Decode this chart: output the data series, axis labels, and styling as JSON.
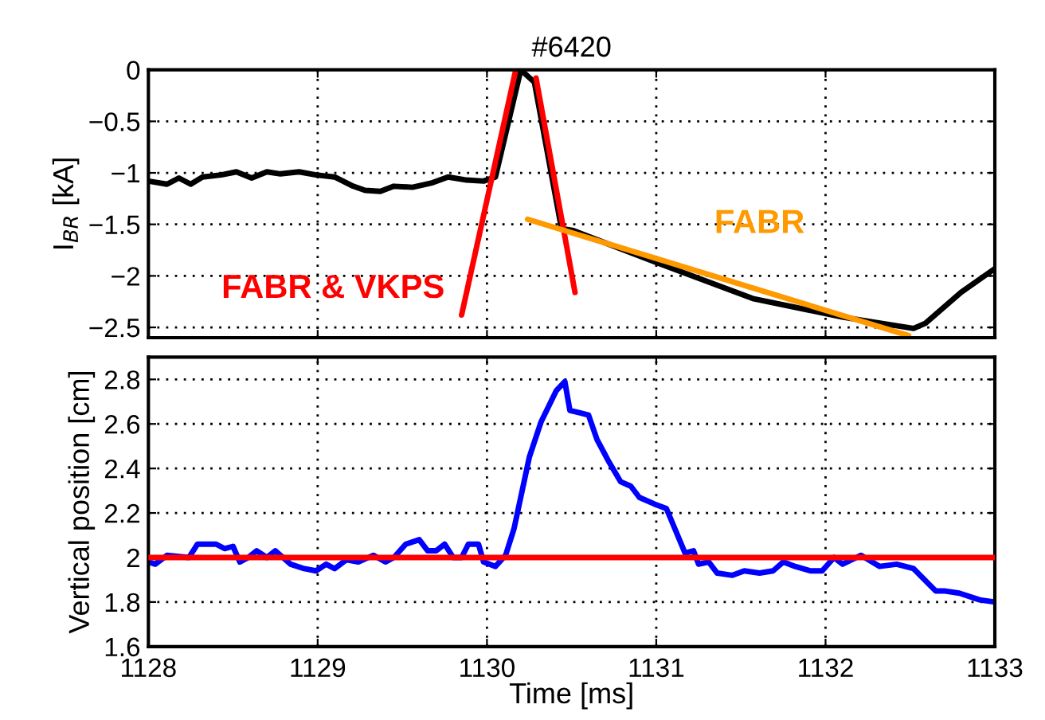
{
  "chart_data": [
    {
      "type": "line",
      "title": "#6420",
      "ylabel": "I$_{BR}$ [kA]",
      "xlim": [
        1128,
        1133
      ],
      "xticks": [
        1128,
        1129,
        1130,
        1131,
        1132,
        1133
      ],
      "ylim": [
        -2.6,
        0
      ],
      "yticks": [
        {
          "value": -2.5,
          "label": "−2.5"
        },
        {
          "value": -2,
          "label": "−2"
        },
        {
          "value": -1.5,
          "label": "−1.5"
        },
        {
          "value": -1,
          "label": "−1"
        },
        {
          "value": -0.5,
          "label": "−0.5"
        },
        0
      ],
      "tick_labels": "y",
      "grid": true,
      "line_style": "solid",
      "marker": "none",
      "series": [
        {
          "color": "#000000",
          "x": [
            1128,
            1128.11,
            1128.18,
            1128.25,
            1128.32,
            1128.43,
            1128.52,
            1128.61,
            1128.7,
            1128.78,
            1128.89,
            1128.99,
            1129.1,
            1129.21,
            1129.28,
            1129.37,
            1129.45,
            1129.56,
            1129.67,
            1129.77,
            1129.88,
            1129.98,
            1130.05,
            1130.2,
            1130.28,
            1130.44,
            1130.51,
            1131,
            1131.57,
            1132.1,
            1132.52,
            1132.59,
            1132.8,
            1133
          ],
          "values": [
            -1.08,
            -1.11,
            -1.05,
            -1.11,
            -1.04,
            -1.02,
            -0.99,
            -1.05,
            -0.99,
            -1.01,
            -0.99,
            -1.02,
            -1.04,
            -1.13,
            -1.17,
            -1.18,
            -1.13,
            -1.14,
            -1.1,
            -1.04,
            -1.07,
            -1.08,
            -1.04,
            0,
            -0.12,
            -1.54,
            -1.56,
            -1.87,
            -2.22,
            -2.4,
            -2.51,
            -2.46,
            -2.16,
            -1.93
          ]
        },
        {
          "name": "FABR & VKPS",
          "color": "#ff0000",
          "x": [
            1129.85,
            1130.17,
            1130.2,
            1130.29,
            1130.52
          ],
          "values": [
            -2.38,
            0,
            null,
            -0.08,
            -2.16
          ]
        },
        {
          "name": "FABR",
          "color": "#ff9900",
          "x": [
            1130.24,
            1132.49
          ],
          "values": [
            -1.45,
            -2.58
          ]
        }
      ]
    },
    {
      "type": "line",
      "xlabel": "Time [ms]",
      "ylabel": "Vertical position [cm]",
      "xlim": [
        1128,
        1133
      ],
      "xticks": [
        1128,
        1129,
        1130,
        1131,
        1132,
        1133
      ],
      "ylim": [
        1.6,
        2.9
      ],
      "yticks": [
        1.6,
        1.8,
        2,
        2.2,
        2.4,
        2.6,
        2.8
      ],
      "grid": true,
      "line_style": "solid",
      "marker": "none",
      "ref_lines": [
        {
          "axis": "y",
          "value": 2,
          "color": "#ff0000"
        }
      ],
      "series": [
        {
          "color": "#0000ff",
          "x": [
            1128,
            1128.04,
            1128.11,
            1128.24,
            1128.29,
            1128.4,
            1128.45,
            1128.5,
            1128.54,
            1128.59,
            1128.64,
            1128.7,
            1128.75,
            1128.84,
            1128.92,
            1128.99,
            1129.05,
            1129.1,
            1129.17,
            1129.24,
            1129.33,
            1129.4,
            1129.45,
            1129.52,
            1129.6,
            1129.65,
            1129.7,
            1129.75,
            1129.8,
            1129.85,
            1129.89,
            1129.95,
            1129.98,
            1130.05,
            1130.11,
            1130.16,
            1130.25,
            1130.32,
            1130.41,
            1130.46,
            1130.49,
            1130.55,
            1130.6,
            1130.65,
            1130.72,
            1130.79,
            1130.85,
            1130.9,
            1130.99,
            1131.06,
            1131.17,
            1131.22,
            1131.25,
            1131.31,
            1131.36,
            1131.45,
            1131.52,
            1131.61,
            1131.69,
            1131.75,
            1131.82,
            1131.91,
            1131.98,
            1132.05,
            1132.1,
            1132.21,
            1132.32,
            1132.42,
            1132.52,
            1132.65,
            1132.7,
            1132.79,
            1132.91,
            1133
          ],
          "values": [
            1.98,
            1.97,
            2.01,
            2.0,
            2.06,
            2.06,
            2.04,
            2.05,
            1.98,
            2.0,
            2.03,
            2.0,
            2.03,
            1.97,
            1.95,
            1.94,
            1.97,
            1.95,
            1.99,
            1.98,
            2.01,
            1.98,
            2.0,
            2.06,
            2.08,
            2.03,
            2.03,
            2.06,
            2.0,
            2.0,
            2.06,
            2.06,
            1.98,
            1.96,
            2.01,
            2.13,
            2.45,
            2.61,
            2.75,
            2.79,
            2.66,
            2.65,
            2.64,
            2.53,
            2.43,
            2.34,
            2.32,
            2.27,
            2.24,
            2.22,
            2.02,
            2.03,
            1.97,
            1.98,
            1.93,
            1.92,
            1.94,
            1.93,
            1.94,
            1.98,
            1.96,
            1.94,
            1.94,
            2.0,
            1.97,
            2.01,
            1.96,
            1.97,
            1.95,
            1.85,
            1.85,
            1.84,
            1.81,
            1.8
          ]
        }
      ]
    }
  ]
}
